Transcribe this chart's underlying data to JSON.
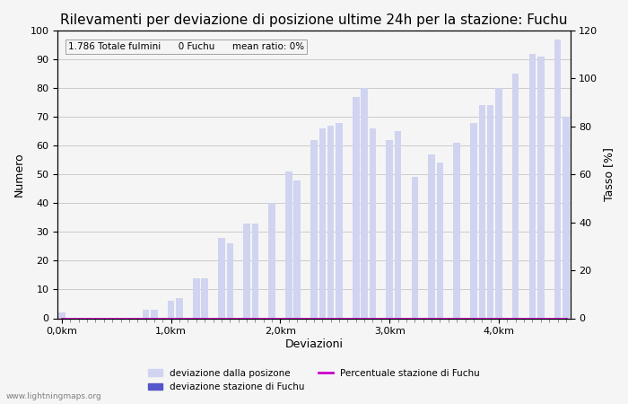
{
  "title": "Rilevamenti per deviazione di posizione ultime 24h per la stazione: Fuchu",
  "xlabel": "Deviazioni",
  "ylabel_left": "Numero",
  "ylabel_right": "Tasso [%]",
  "annotation": "1.786 Totale fulmini      0 Fuchu      mean ratio: 0%",
  "bar_color_light": "#d0d4f0",
  "bar_color_dark": "#5555cc",
  "line_color": "#cc00cc",
  "background_color": "#f5f5f5",
  "ylim_left": [
    0,
    100
  ],
  "ylim_right": [
    0,
    120
  ],
  "bar_values": [
    2,
    0,
    0,
    0,
    0,
    0,
    0,
    0,
    0,
    0,
    3,
    3,
    0,
    6,
    7,
    0,
    14,
    14,
    0,
    28,
    26,
    0,
    33,
    33,
    0,
    40,
    0,
    51,
    48,
    0,
    62,
    66,
    67,
    68,
    0,
    77,
    80,
    66,
    0,
    62,
    65,
    0,
    49,
    0,
    57,
    54,
    0,
    61,
    0,
    68,
    74,
    74,
    80,
    0,
    85,
    0,
    92,
    91,
    0,
    97,
    70
  ],
  "fuchu_values": [
    0,
    0,
    0,
    0,
    0,
    0,
    0,
    0,
    0,
    0,
    0,
    0,
    0,
    0,
    0,
    0,
    0,
    0,
    0,
    0,
    0,
    0,
    0,
    0,
    0,
    0,
    0,
    0,
    0,
    0,
    0,
    0,
    0,
    0,
    0,
    0,
    0,
    0,
    0,
    0,
    0,
    0,
    0,
    0,
    0,
    0,
    0,
    0,
    0,
    0,
    0,
    0,
    0,
    0,
    0,
    0,
    0,
    0,
    0,
    0,
    0
  ],
  "percentage_values": [
    0,
    0,
    0,
    0,
    0,
    0,
    0,
    0,
    0,
    0,
    0,
    0,
    0,
    0,
    0,
    0,
    0,
    0,
    0,
    0,
    0,
    0,
    0,
    0,
    0,
    0,
    0,
    0,
    0,
    0,
    0,
    0,
    0,
    0,
    0,
    0,
    0,
    0,
    0,
    0,
    0,
    0,
    0,
    0,
    0,
    0,
    0,
    0,
    0,
    0,
    0,
    0,
    0,
    0,
    0,
    0,
    0,
    0,
    0,
    0,
    0
  ],
  "x_tick_positions": [
    0,
    10,
    20,
    30,
    40,
    50
  ],
  "x_tick_labels": [
    "0,0km",
    "1,0km",
    "2,0km",
    "3,0km",
    "4,0km",
    ""
  ],
  "yticks_left": [
    0,
    10,
    20,
    30,
    40,
    50,
    60,
    70,
    80,
    90,
    100
  ],
  "yticks_right": [
    0,
    20,
    40,
    60,
    80,
    100,
    120
  ],
  "grid_color": "#bbbbbb",
  "watermark": "www.lightningmaps.org",
  "legend_label_light": "deviazione dalla posizone",
  "legend_label_dark": "deviazione stazione di Fuchu",
  "legend_label_line": "Percentuale stazione di Fuchu",
  "title_fontsize": 11,
  "axis_fontsize": 9,
  "tick_fontsize": 8
}
